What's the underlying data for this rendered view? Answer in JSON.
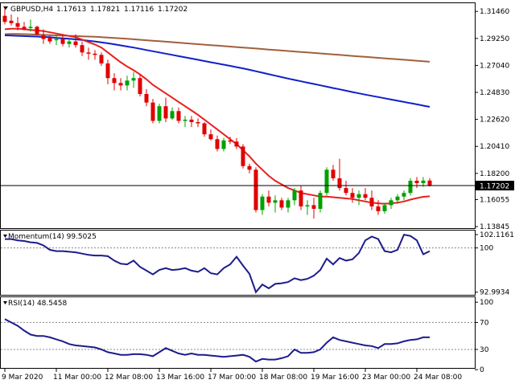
{
  "header": {
    "symbol_label": "GBPUSD,H4",
    "open": "1.17613",
    "high": "1.17821",
    "low": "1.17116",
    "close": "1.17202"
  },
  "colors": {
    "bull": "#00a000",
    "bear": "#e00000",
    "ma_red": "#e8201c",
    "ma_blue": "#1020c8",
    "ma_brown": "#a0603c",
    "indicator": "#1c1c8c",
    "level": "#888888",
    "frame": "#000000"
  },
  "price_panel": {
    "ylim": [
      1.1385,
      1.32
    ],
    "tick_labels": [
      "1.31460",
      "1.29250",
      "1.27040",
      "1.24830",
      "1.22620",
      "1.20410",
      "1.18200",
      "1.16055",
      "1.13845"
    ],
    "tick_values": [
      1.3146,
      1.2925,
      1.2704,
      1.2483,
      1.2262,
      1.2041,
      1.182,
      1.16055,
      1.13845
    ],
    "current_price_label": "1.17202",
    "current_price": 1.17202
  },
  "momentum_panel": {
    "title": "Momentum(14) 99.5025",
    "ylim": [
      92.7,
      102.5
    ],
    "tick_labels": [
      "102.1161",
      "100",
      "92.9934"
    ],
    "tick_values": [
      102.1161,
      100,
      92.9934
    ],
    "level": 100
  },
  "rsi_panel": {
    "title": "RSI(14) 48.5458",
    "ylim": [
      5,
      105
    ],
    "tick_labels": [
      "100",
      "70",
      "30",
      "0"
    ],
    "tick_values": [
      100,
      70,
      30,
      0
    ],
    "levels": [
      70,
      30
    ]
  },
  "time_axis": {
    "labels": [
      "9 Mar 2020",
      "11 Mar 00:00",
      "12 Mar 08:00",
      "13 Mar 16:00",
      "17 Mar 00:00",
      "18 Mar 08:00",
      "19 Mar 16:00",
      "23 Mar 00:00",
      "24 Mar 08:00"
    ],
    "label_bars": [
      0,
      8,
      16,
      24,
      32,
      40,
      48,
      56,
      64
    ]
  },
  "chart_data": {
    "type": "candlestick",
    "ohlc": [
      [
        1.311,
        1.317,
        1.304,
        1.306
      ],
      [
        1.307,
        1.312,
        1.303,
        1.305
      ],
      [
        1.305,
        1.31,
        1.299,
        1.302
      ],
      [
        1.302,
        1.306,
        1.299,
        1.3
      ],
      [
        1.301,
        1.308,
        1.298,
        1.302
      ],
      [
        1.302,
        1.303,
        1.295,
        1.296
      ],
      [
        1.295,
        1.3,
        1.288,
        1.292
      ],
      [
        1.293,
        1.295,
        1.288,
        1.29
      ],
      [
        1.291,
        1.295,
        1.287,
        1.292
      ],
      [
        1.292,
        1.296,
        1.286,
        1.288
      ],
      [
        1.288,
        1.292,
        1.285,
        1.29
      ],
      [
        1.29,
        1.296,
        1.285,
        1.287
      ],
      [
        1.287,
        1.29,
        1.278,
        1.281
      ],
      [
        1.281,
        1.285,
        1.275,
        1.28
      ],
      [
        1.28,
        1.283,
        1.275,
        1.279
      ],
      [
        1.279,
        1.281,
        1.27,
        1.272
      ],
      [
        1.272,
        1.275,
        1.255,
        1.26
      ],
      [
        1.26,
        1.264,
        1.25,
        1.256
      ],
      [
        1.256,
        1.26,
        1.25,
        1.254
      ],
      [
        1.254,
        1.262,
        1.25,
        1.258
      ],
      [
        1.258,
        1.265,
        1.252,
        1.26
      ],
      [
        1.26,
        1.263,
        1.245,
        1.247
      ],
      [
        1.247,
        1.251,
        1.237,
        1.24
      ],
      [
        1.24,
        1.243,
        1.223,
        1.225
      ],
      [
        1.225,
        1.239,
        1.223,
        1.237
      ],
      [
        1.237,
        1.244,
        1.224,
        1.227
      ],
      [
        1.227,
        1.236,
        1.226,
        1.233
      ],
      [
        1.233,
        1.236,
        1.223,
        1.225
      ],
      [
        1.225,
        1.229,
        1.22,
        1.226
      ],
      [
        1.226,
        1.229,
        1.22,
        1.224
      ],
      [
        1.224,
        1.227,
        1.22,
        1.223
      ],
      [
        1.223,
        1.224,
        1.212,
        1.214
      ],
      [
        1.214,
        1.218,
        1.209,
        1.21
      ],
      [
        1.21,
        1.213,
        1.2,
        1.202
      ],
      [
        1.202,
        1.211,
        1.2,
        1.209
      ],
      [
        1.209,
        1.212,
        1.206,
        1.208
      ],
      [
        1.208,
        1.211,
        1.202,
        1.204
      ],
      [
        1.204,
        1.206,
        1.186,
        1.188
      ],
      [
        1.188,
        1.19,
        1.182,
        1.185
      ],
      [
        1.185,
        1.187,
        1.15,
        1.152
      ],
      [
        1.152,
        1.165,
        1.148,
        1.163
      ],
      [
        1.163,
        1.168,
        1.155,
        1.158
      ],
      [
        1.158,
        1.164,
        1.15,
        1.16
      ],
      [
        1.16,
        1.162,
        1.152,
        1.154
      ],
      [
        1.154,
        1.162,
        1.15,
        1.16
      ],
      [
        1.16,
        1.17,
        1.156,
        1.168
      ],
      [
        1.168,
        1.172,
        1.152,
        1.155
      ],
      [
        1.155,
        1.16,
        1.148,
        1.156
      ],
      [
        1.156,
        1.162,
        1.145,
        1.153
      ],
      [
        1.153,
        1.168,
        1.15,
        1.166
      ],
      [
        1.166,
        1.187,
        1.164,
        1.185
      ],
      [
        1.185,
        1.189,
        1.176,
        1.178
      ],
      [
        1.178,
        1.194,
        1.168,
        1.17
      ],
      [
        1.17,
        1.176,
        1.164,
        1.166
      ],
      [
        1.166,
        1.17,
        1.158,
        1.162
      ],
      [
        1.162,
        1.168,
        1.156,
        1.165
      ],
      [
        1.165,
        1.17,
        1.16,
        1.162
      ],
      [
        1.162,
        1.168,
        1.152,
        1.155
      ],
      [
        1.155,
        1.16,
        1.148,
        1.151
      ],
      [
        1.151,
        1.158,
        1.149,
        1.156
      ],
      [
        1.156,
        1.162,
        1.153,
        1.16
      ],
      [
        1.16,
        1.165,
        1.157,
        1.163
      ],
      [
        1.163,
        1.168,
        1.16,
        1.166
      ],
      [
        1.166,
        1.178,
        1.164,
        1.176
      ],
      [
        1.176,
        1.179,
        1.17,
        1.174
      ],
      [
        1.174,
        1.179,
        1.171,
        1.1761
      ],
      [
        1.17613,
        1.17821,
        1.17116,
        1.17202
      ]
    ],
    "ma_red": [
      1.3,
      1.3005,
      1.3005,
      1.3,
      1.2995,
      1.299,
      1.2985,
      1.2975,
      1.2965,
      1.2955,
      1.2945,
      1.2935,
      1.2915,
      1.2895,
      1.2875,
      1.285,
      1.281,
      1.277,
      1.273,
      1.2695,
      1.2665,
      1.263,
      1.259,
      1.2545,
      1.251,
      1.2475,
      1.244,
      1.2405,
      1.237,
      1.2335,
      1.23,
      1.226,
      1.222,
      1.218,
      1.214,
      1.21,
      1.206,
      1.201,
      1.196,
      1.19,
      1.185,
      1.18,
      1.176,
      1.173,
      1.17,
      1.168,
      1.166,
      1.165,
      1.164,
      1.163,
      1.163,
      1.1625,
      1.162,
      1.1615,
      1.161,
      1.16,
      1.159,
      1.158,
      1.1575,
      1.1572,
      1.1575,
      1.158,
      1.159,
      1.1605,
      1.1618,
      1.1628,
      1.1632
    ],
    "ma_blue": [
      1.295,
      1.2948,
      1.2946,
      1.2944,
      1.2942,
      1.294,
      1.2937,
      1.2934,
      1.293,
      1.2926,
      1.2922,
      1.2917,
      1.2912,
      1.2906,
      1.29,
      1.2893,
      1.2885,
      1.2877,
      1.2868,
      1.2859,
      1.285,
      1.284,
      1.283,
      1.282,
      1.281,
      1.28,
      1.279,
      1.278,
      1.277,
      1.276,
      1.275,
      1.274,
      1.273,
      1.272,
      1.271,
      1.27,
      1.269,
      1.268,
      1.2668,
      1.2656,
      1.2644,
      1.2632,
      1.262,
      1.2608,
      1.2596,
      1.2585,
      1.2574,
      1.2563,
      1.2552,
      1.2541,
      1.253,
      1.2519,
      1.2508,
      1.2497,
      1.2486,
      1.2475,
      1.2465,
      1.2455,
      1.2445,
      1.2435,
      1.2425,
      1.2415,
      1.2405,
      1.2395,
      1.2385,
      1.2375,
      1.2365
    ],
    "ma_brown": [
      1.296,
      1.2962,
      1.2962,
      1.296,
      1.2958,
      1.2956,
      1.2954,
      1.2952,
      1.295,
      1.2948,
      1.2946,
      1.2944,
      1.2942,
      1.294,
      1.2938,
      1.2935,
      1.2932,
      1.2929,
      1.2926,
      1.2922,
      1.2918,
      1.2914,
      1.291,
      1.2906,
      1.2902,
      1.2898,
      1.2894,
      1.289,
      1.2886,
      1.2882,
      1.2878,
      1.2874,
      1.287,
      1.2866,
      1.2862,
      1.2858,
      1.2854,
      1.285,
      1.2846,
      1.2842,
      1.2838,
      1.2834,
      1.283,
      1.2826,
      1.2822,
      1.2818,
      1.2814,
      1.281,
      1.2806,
      1.2802,
      1.2798,
      1.2794,
      1.279,
      1.2786,
      1.2782,
      1.2778,
      1.2774,
      1.277,
      1.2766,
      1.2762,
      1.2758,
      1.2754,
      1.275,
      1.2746,
      1.2742,
      1.2738,
      1.2734
    ],
    "momentum": [
      101.4,
      101.4,
      101.2,
      101.1,
      100.9,
      100.8,
      100.4,
      99.7,
      99.5,
      99.5,
      99.4,
      99.3,
      99.1,
      98.9,
      98.8,
      98.8,
      98.7,
      98.0,
      97.5,
      97.4,
      98.0,
      97.0,
      96.4,
      95.8,
      96.5,
      96.8,
      96.5,
      96.6,
      96.8,
      96.4,
      96.2,
      96.8,
      96.0,
      95.8,
      96.8,
      97.4,
      98.6,
      97.2,
      95.9,
      93.0,
      94.2,
      93.6,
      94.3,
      94.4,
      94.6,
      95.2,
      94.9,
      95.1,
      95.6,
      96.5,
      98.3,
      97.4,
      98.4,
      98.0,
      98.2,
      99.2,
      101.2,
      101.8,
      101.4,
      99.5,
      99.3,
      99.7,
      102.1,
      101.9,
      101.2,
      99.0,
      99.5
    ],
    "rsi": [
      75,
      70,
      65,
      58,
      52,
      50,
      50,
      48,
      45,
      42,
      38,
      36,
      35,
      34,
      33,
      30,
      26,
      24,
      22,
      22,
      23,
      23,
      22,
      20,
      26,
      32,
      28,
      24,
      22,
      24,
      22,
      22,
      21,
      20,
      19,
      20,
      21,
      22,
      19,
      12,
      16,
      15,
      15,
      17,
      20,
      30,
      25,
      25,
      26,
      30,
      40,
      48,
      44,
      42,
      40,
      38,
      36,
      35,
      32,
      38,
      38,
      39,
      42,
      44,
      45,
      48,
      48
    ]
  }
}
